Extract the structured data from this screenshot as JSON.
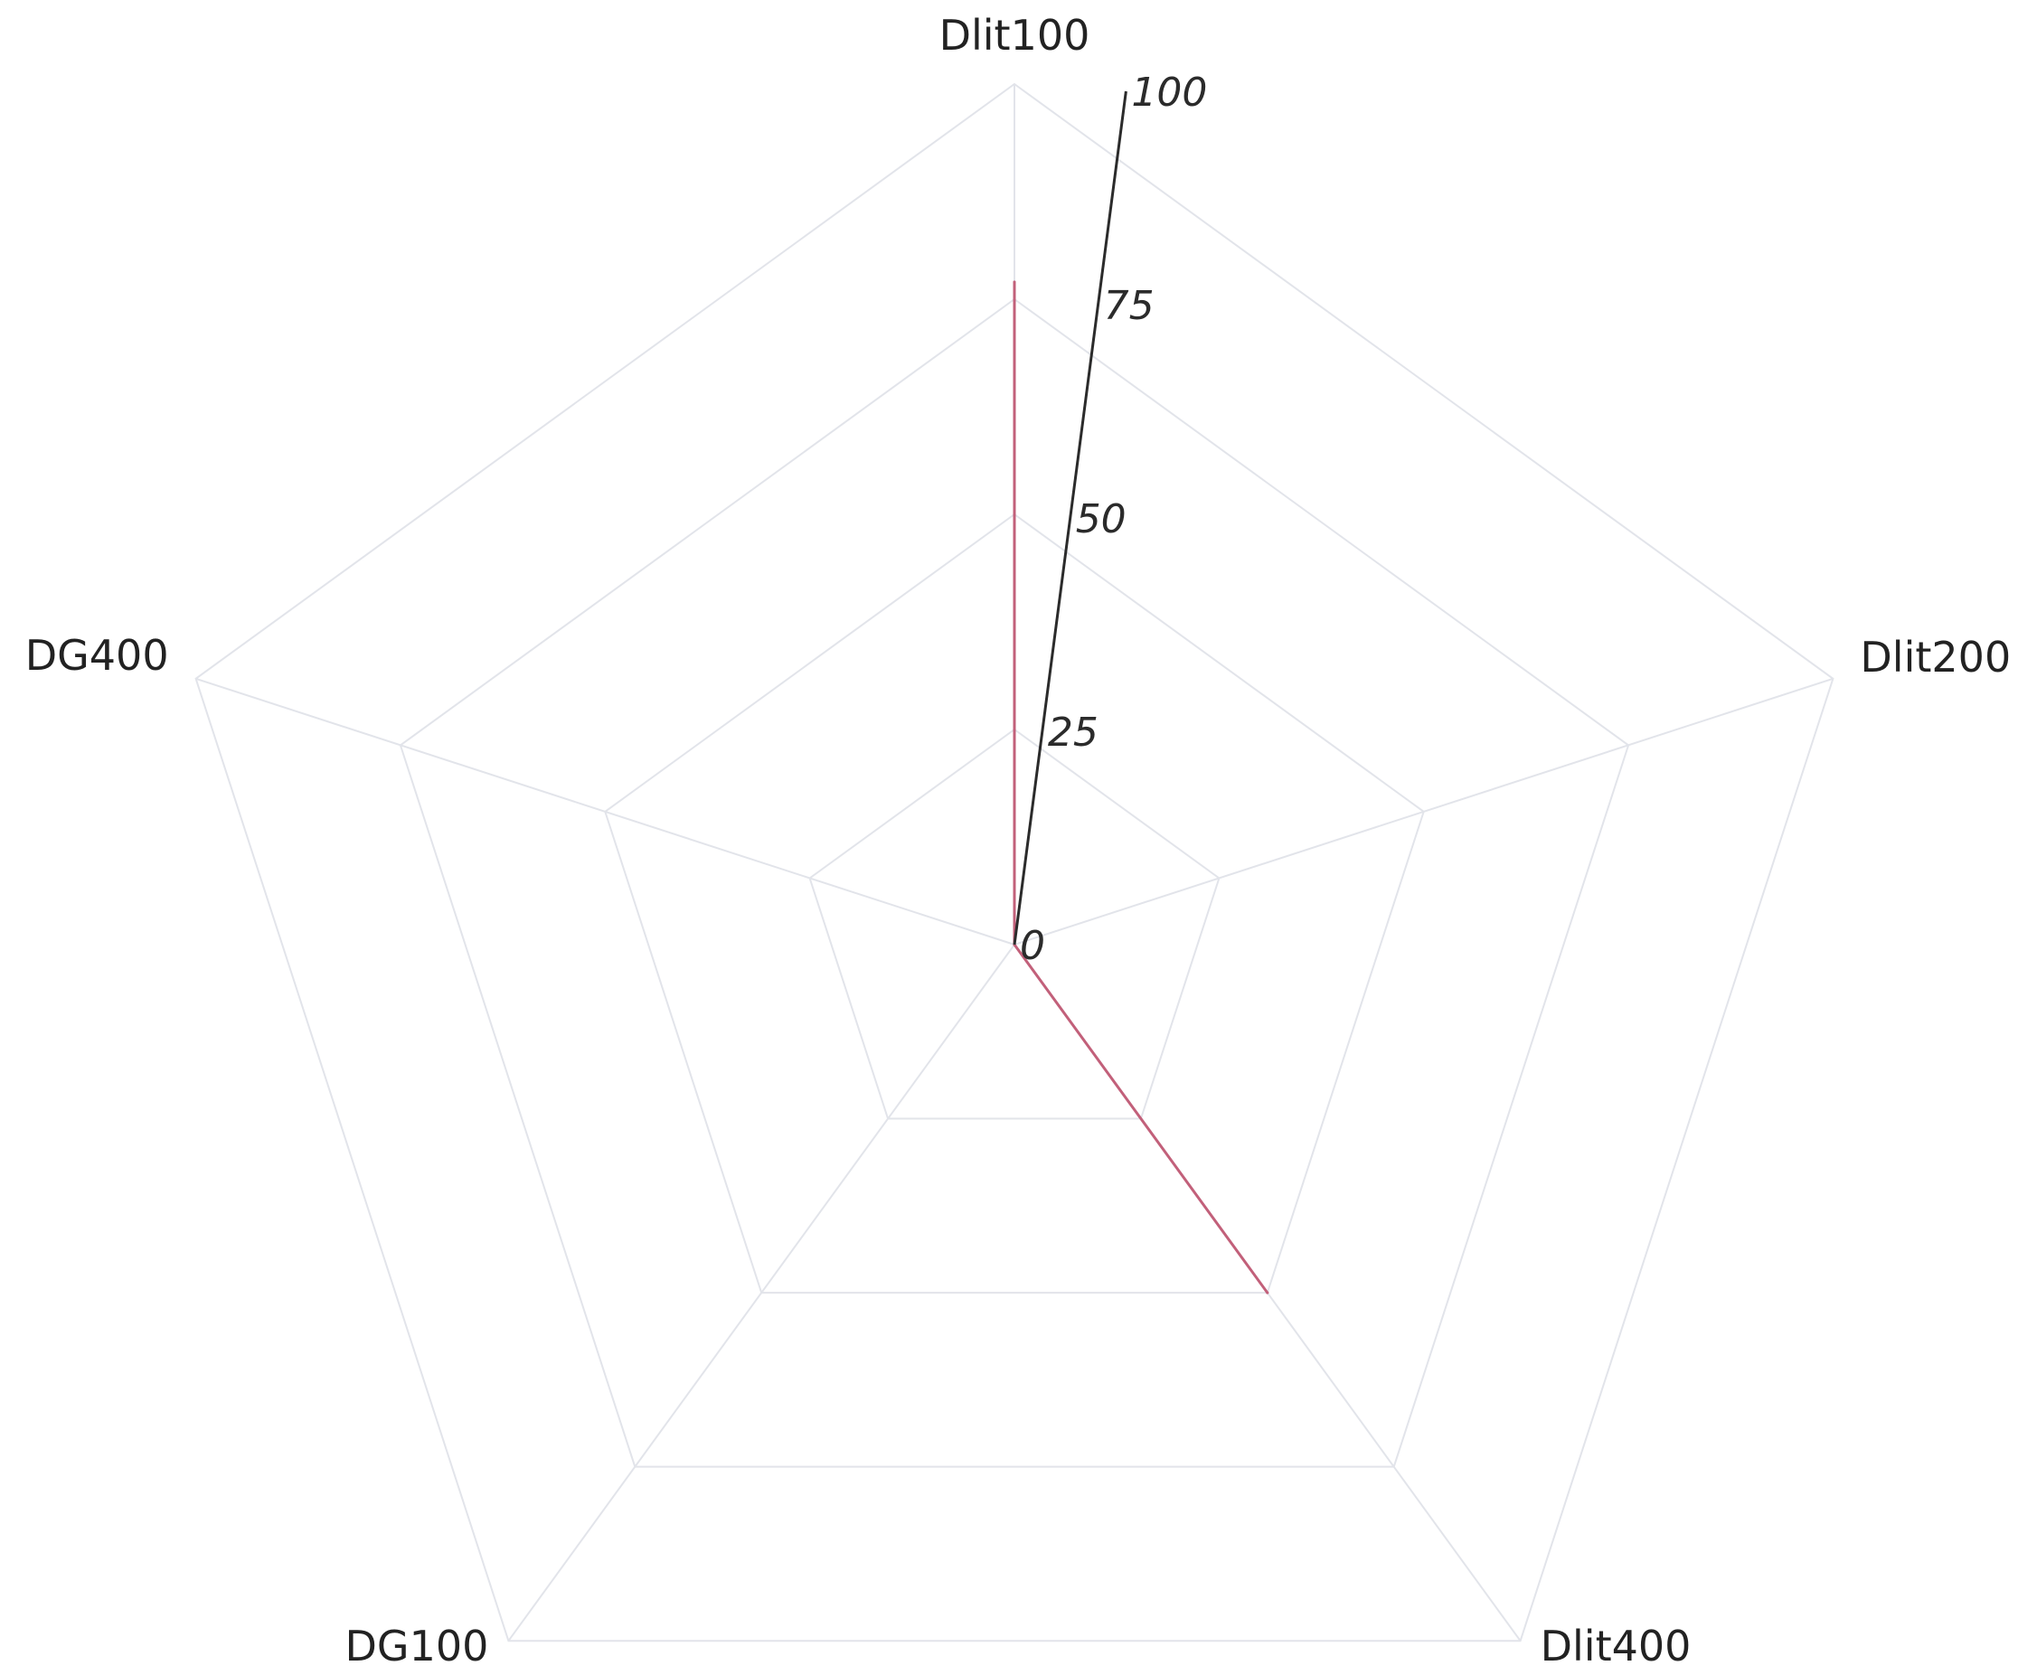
{
  "chart_data": {
    "type": "radar",
    "categories": [
      "Dlit100",
      "Dlit200",
      "Dlit400",
      "DG100",
      "DG400"
    ],
    "radial_axis": {
      "range": [
        0,
        100
      ],
      "ticks": [
        0,
        25,
        50,
        75,
        100
      ],
      "tick_labels": [
        "0",
        "25",
        "50",
        "75",
        "100"
      ]
    },
    "series": [
      {
        "values": [
          77,
          0,
          50,
          0,
          0
        ],
        "color": "#c2607a"
      }
    ],
    "grid": true,
    "colors": {
      "grid": "#e2e4ea",
      "axis": "#2b2b2b",
      "label": "#222222"
    }
  }
}
